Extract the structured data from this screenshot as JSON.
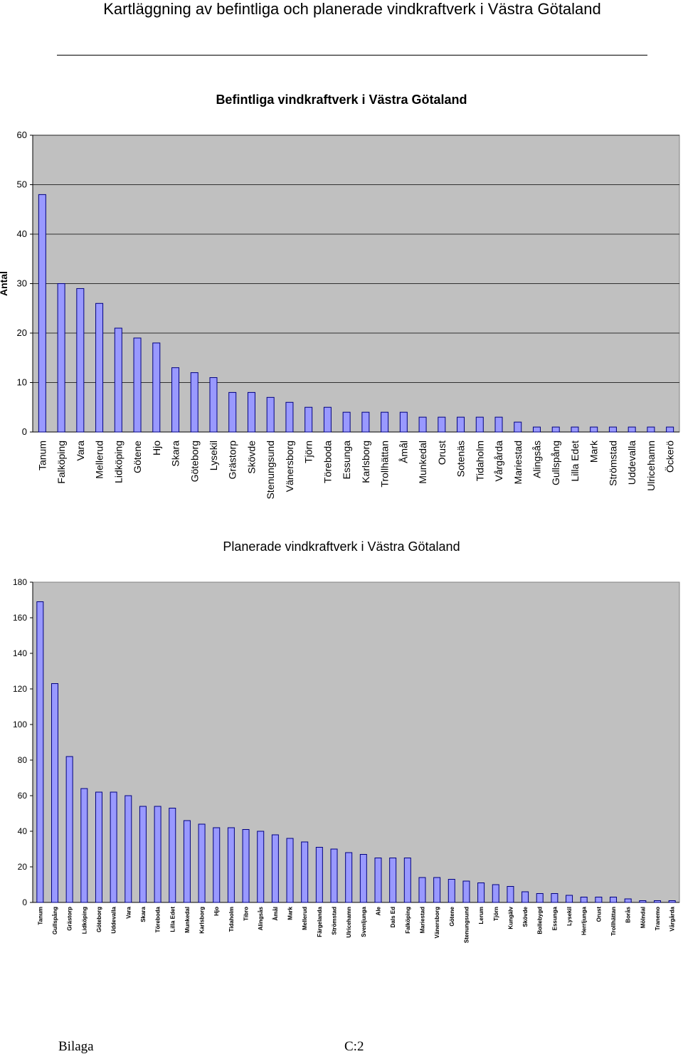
{
  "page": {
    "title": "Kartläggning av befintliga och planerade vindkraftverk i Västra Götaland",
    "footer_left": "Bilaga",
    "footer_right": "C:2"
  },
  "chart_data": [
    {
      "type": "bar",
      "title": "Befintliga vindkraftverk i Västra Götaland",
      "ylabel": "Antal",
      "xlabel": "",
      "ylim": [
        0,
        60
      ],
      "yticks": [
        0,
        10,
        20,
        30,
        40,
        50,
        60
      ],
      "grid": true,
      "legend": "none",
      "colors": {
        "bar_fill": "#9999ff",
        "plot_bg": "#c0c0c0",
        "grid": "#000000"
      },
      "categories": [
        "Tanum",
        "Falköping",
        "Vara",
        "Mellerud",
        "Lidköping",
        "Götene",
        "Hjo",
        "Skara",
        "Göteborg",
        "Lysekil",
        "Grästorp",
        "Skövde",
        "Stenungsund",
        "Vänersborg",
        "Tjörn",
        "Töreboda",
        "Essunga",
        "Karlsborg",
        "Trollhättan",
        "Åmål",
        "Munkedal",
        "Orust",
        "Sotenäs",
        "Tidaholm",
        "Vårgårda",
        "Mariestad",
        "Alingsås",
        "Gullspång",
        "Lilla Edet",
        "Mark",
        "Strömstad",
        "Uddevalla",
        "Ulricehamn",
        "Öckerö"
      ],
      "values": [
        48,
        30,
        29,
        26,
        21,
        19,
        18,
        13,
        12,
        11,
        8,
        8,
        7,
        6,
        5,
        5,
        4,
        4,
        4,
        4,
        3,
        3,
        3,
        3,
        3,
        2,
        1,
        1,
        1,
        1,
        1,
        1,
        1,
        1
      ]
    },
    {
      "type": "bar",
      "title": "Planerade vindkraftverk i Västra Götaland",
      "ylabel": "",
      "xlabel": "",
      "ylim": [
        0,
        180
      ],
      "yticks": [
        0,
        20,
        40,
        60,
        80,
        100,
        120,
        140,
        160,
        180
      ],
      "grid": false,
      "legend": "none",
      "colors": {
        "bar_fill": "#9999ff",
        "plot_bg": "#c0c0c0"
      },
      "categories": [
        "Tanum",
        "Gullspång",
        "Grästorp",
        "Lidköping",
        "Göteborg",
        "Uddevalla",
        "Vara",
        "Skara",
        "Töreboda",
        "Lilla Edet",
        "Munkedal",
        "Karlsborg",
        "Hjo",
        "Tidaholm",
        "Tibro",
        "Alingsås",
        "Åmål",
        "Mark",
        "Mellerud",
        "Färgelanda",
        "Strömstad",
        "Ulricehamn",
        "Svenljunga",
        "Ale",
        "Dals Ed",
        "Falköping",
        "Mariestad",
        "Vänersborg",
        "Götene",
        "Stenungsund",
        "Lerum",
        "Tjörn",
        "Kungälv",
        "Skövde",
        "Bollebygd",
        "Essunga",
        "Lysekil",
        "Herrljunga",
        "Orust",
        "Trollhättan",
        "Borås",
        "Mölndal",
        "Tranemo",
        "Vårgårda"
      ],
      "values": [
        169,
        123,
        82,
        64,
        62,
        62,
        60,
        54,
        54,
        53,
        46,
        44,
        42,
        42,
        41,
        40,
        38,
        36,
        34,
        31,
        30,
        28,
        27,
        25,
        25,
        25,
        14,
        14,
        13,
        12,
        11,
        10,
        9,
        6,
        5,
        5,
        4,
        3,
        3,
        3,
        2,
        1,
        1,
        1
      ]
    }
  ]
}
